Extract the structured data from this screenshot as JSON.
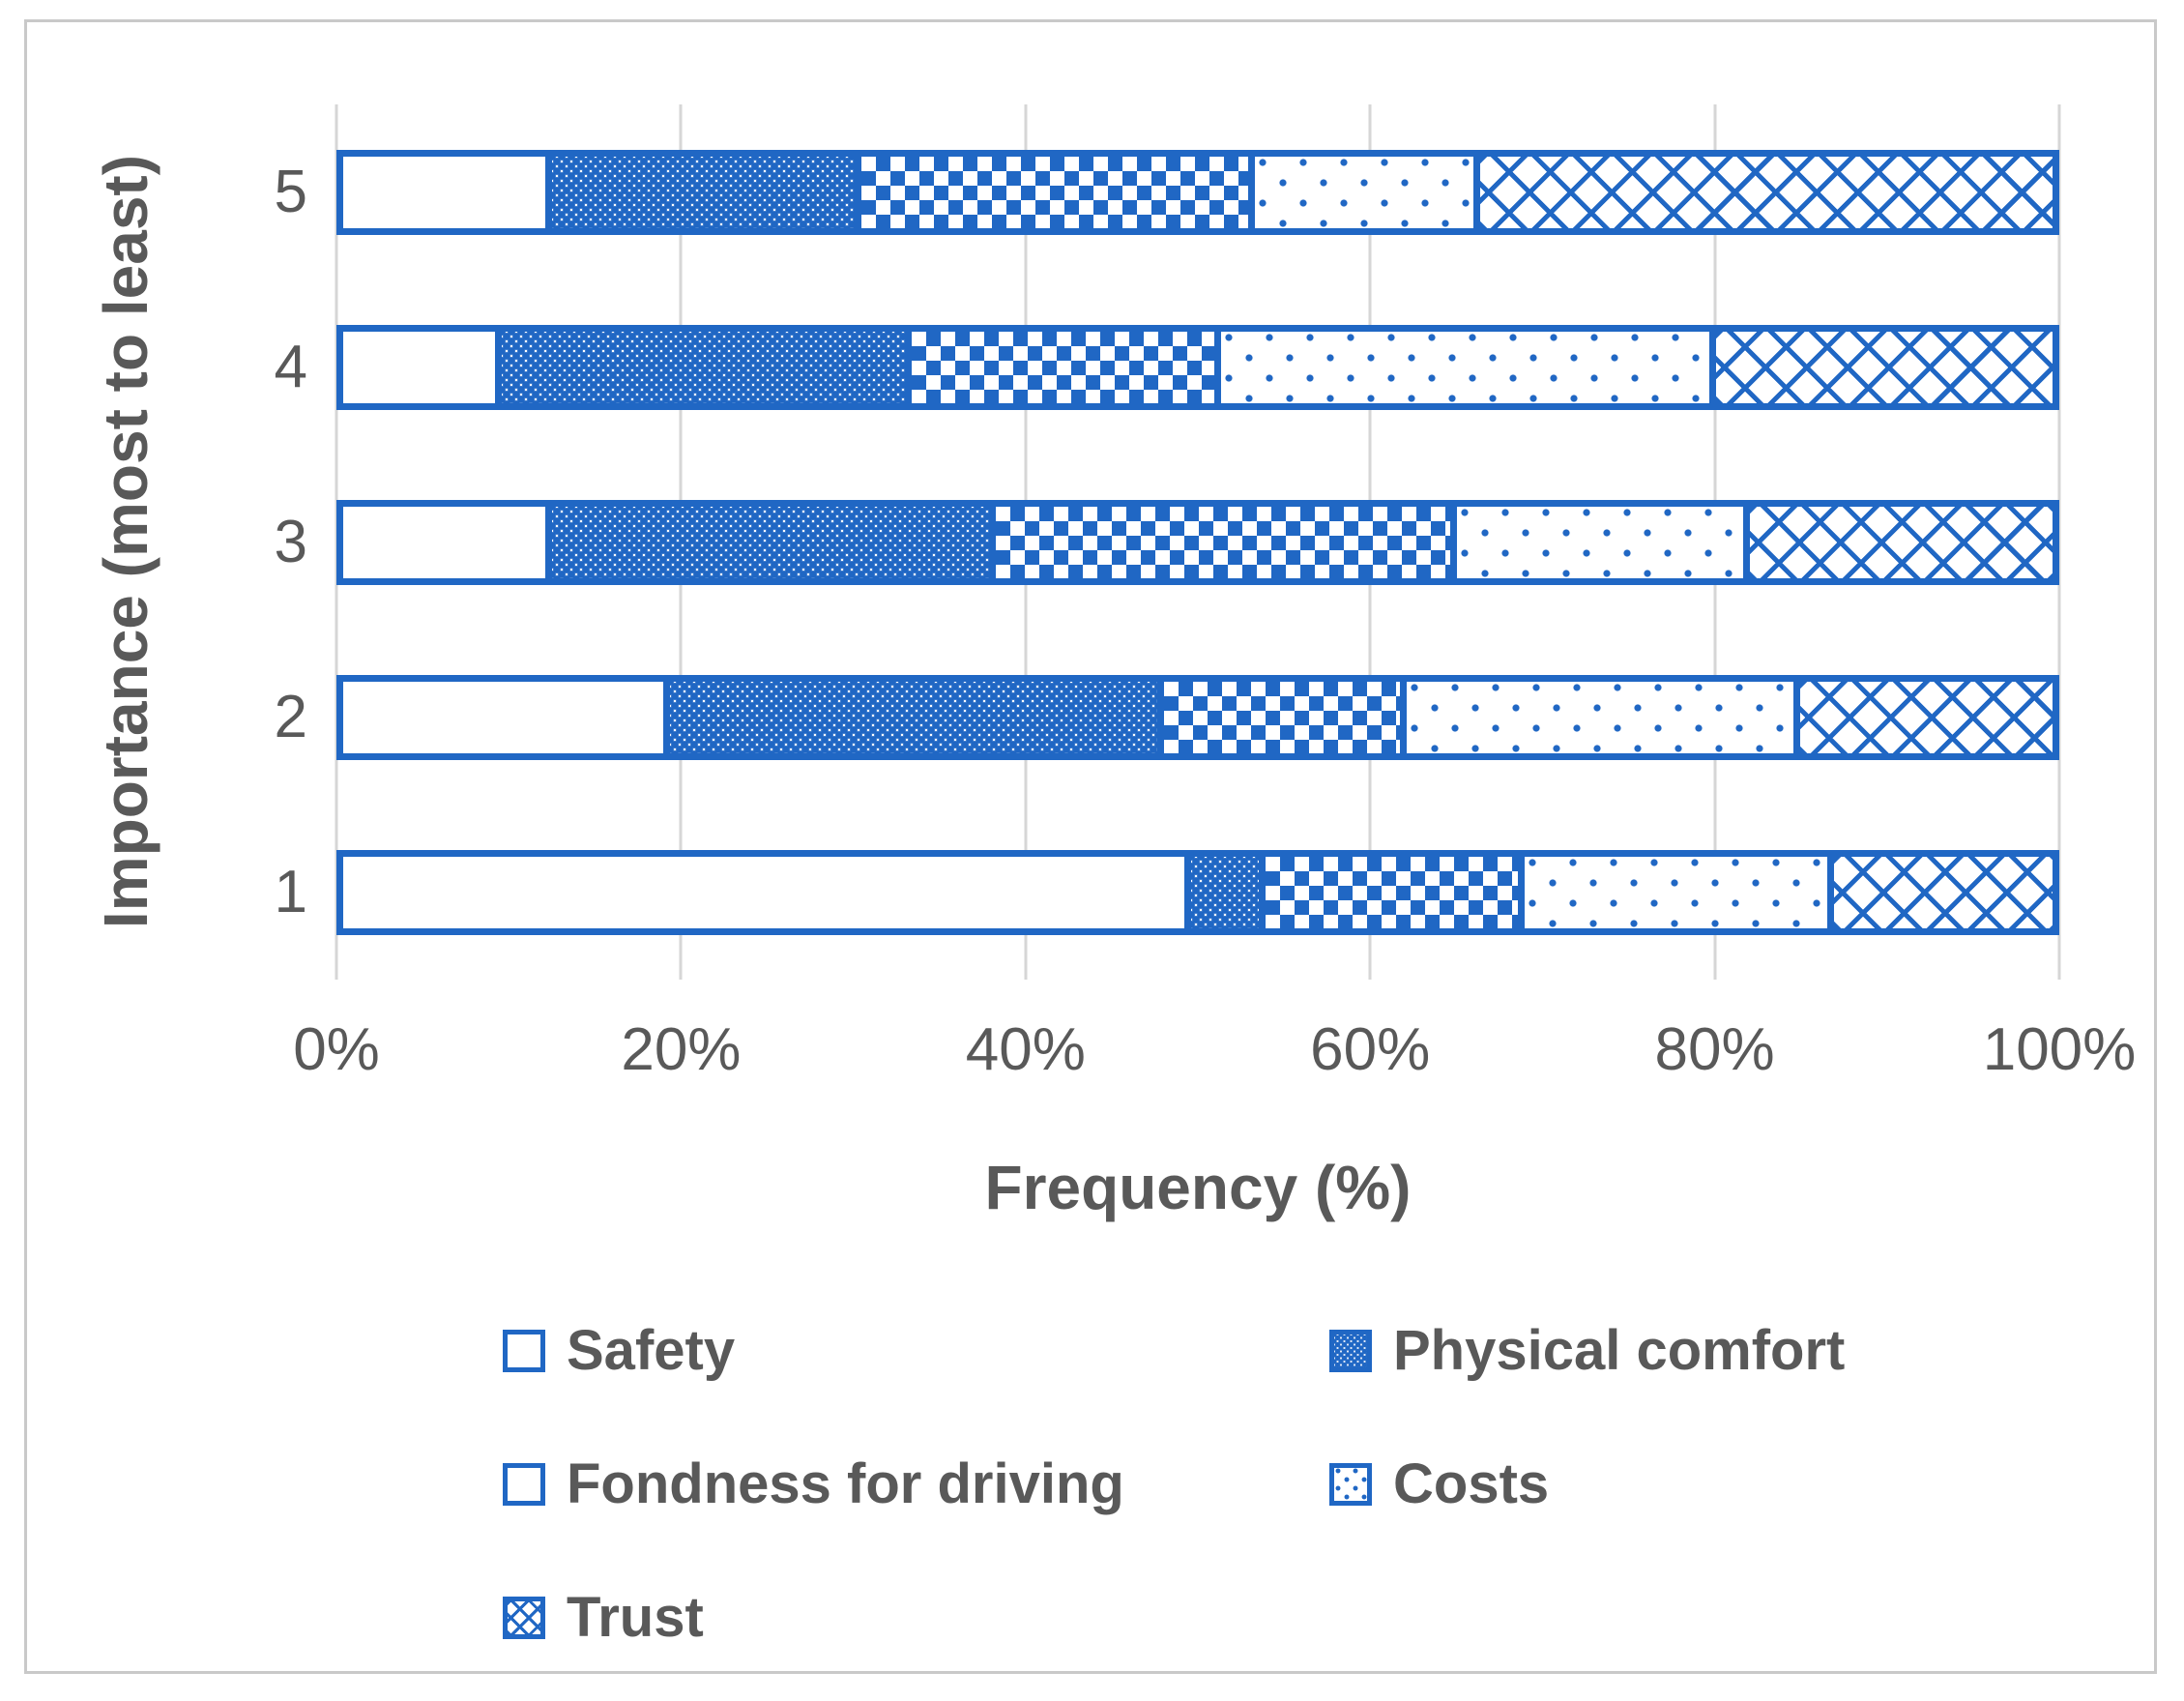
{
  "theme": {
    "blue": "#2067c4",
    "text": "#595959",
    "grid": "#d6d6d6",
    "frame": "#c9c9c9"
  },
  "chart_data": {
    "type": "bar",
    "variant": "horizontal-stacked-100pct",
    "title": "",
    "xlabel": "Frequency (%)",
    "ylabel": "Importance (most to least)",
    "x_ticks": [
      "0%",
      "20%",
      "40%",
      "60%",
      "80%",
      "100%"
    ],
    "xlim": [
      0,
      100
    ],
    "values_unit": "percent",
    "grid": "vertical-major-on",
    "legend_position": "bottom-two-columns",
    "categories": [
      "5",
      "4",
      "3",
      "2",
      "1"
    ],
    "series": [
      {
        "name": "Safety",
        "pattern": "plain",
        "values": [
          12,
          9,
          12,
          19,
          50
        ]
      },
      {
        "name": "Physical comfort",
        "pattern": "dense-dots",
        "values": [
          18,
          24,
          26,
          29,
          4
        ]
      },
      {
        "name": "Fondness for driving",
        "pattern": "checker",
        "values": [
          23,
          18,
          27,
          14,
          15
        ]
      },
      {
        "name": "Costs",
        "pattern": "sparse-dots",
        "values": [
          13,
          29,
          17,
          23,
          18
        ]
      },
      {
        "name": "Trust",
        "pattern": "diag-cross",
        "values": [
          34,
          20,
          18,
          15,
          13
        ]
      }
    ]
  }
}
